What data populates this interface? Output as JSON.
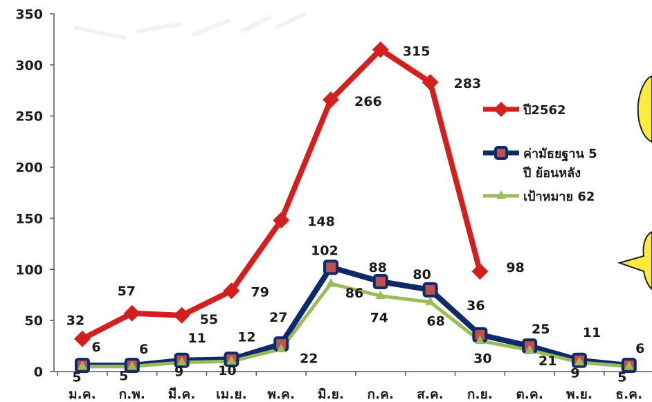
{
  "chart_data": {
    "type": "line",
    "categories": [
      "ม.ค.",
      "ก.พ.",
      "มี.ค.",
      "เม.ย.",
      "พ.ค.",
      "มิ.ย.",
      "ก.ค.",
      "ส.ค.",
      "ก.ย.",
      "ต.ค.",
      "พ.ย.",
      "ธ.ค."
    ],
    "ylim": [
      0,
      350
    ],
    "yticks": [
      0,
      50,
      100,
      150,
      200,
      250,
      300,
      350
    ],
    "grid": false,
    "legend_position": "right",
    "series": [
      {
        "name": "ปี2562",
        "color": "#d41f1f",
        "marker": "diamond",
        "values": [
          32,
          57,
          55,
          79,
          148,
          266,
          315,
          283,
          98,
          null,
          null,
          null
        ]
      },
      {
        "name": "ค่ามัธยฐาน 5 ปี ย้อนหลัง",
        "name_lines": [
          "ค่ามัธยฐาน 5",
          "ปี ย้อนหลัง"
        ],
        "color": "#0d2a6b",
        "marker": "square",
        "values": [
          6,
          6,
          11,
          12,
          27,
          102,
          88,
          80,
          36,
          25,
          11,
          6
        ]
      },
      {
        "name": "เป้าหมาย 62",
        "color": "#9bbb59",
        "marker": "triangle",
        "values": [
          5,
          5,
          9,
          10,
          22,
          86,
          74,
          68,
          30,
          21,
          9,
          5
        ]
      }
    ]
  }
}
